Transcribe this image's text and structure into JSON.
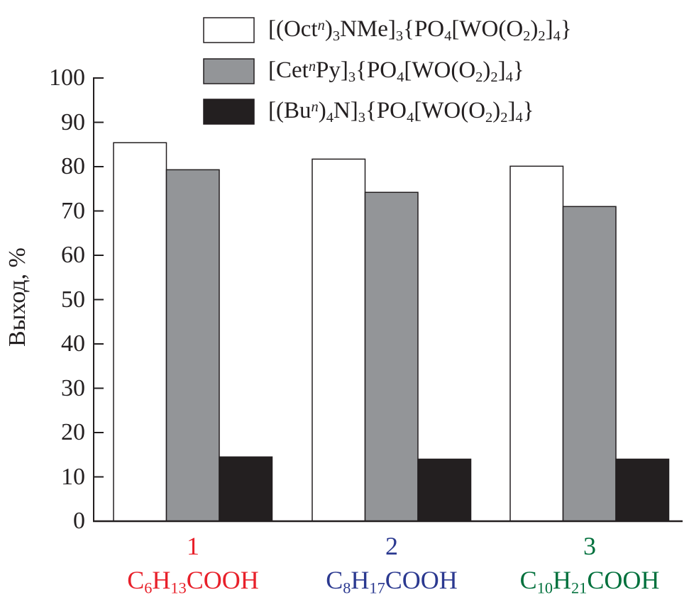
{
  "chart_data": {
    "type": "bar",
    "title": "",
    "xlabel": "",
    "ylabel": "Выход, %",
    "ylim": [
      0,
      100
    ],
    "yticks": [
      "0",
      "10",
      "20",
      "30",
      "40",
      "50",
      "60",
      "70",
      "80",
      "90",
      "100"
    ],
    "grid": false,
    "legend_position": "top-right",
    "categories": [
      {
        "number": "1",
        "formula": [
          {
            "t": "C"
          },
          {
            "t": "6",
            "s": "sub"
          },
          {
            "t": "H"
          },
          {
            "t": "13",
            "s": "sub"
          },
          {
            "t": "COOH"
          }
        ],
        "color": "#e8202a"
      },
      {
        "number": "2",
        "formula": [
          {
            "t": "C"
          },
          {
            "t": "8",
            "s": "sub"
          },
          {
            "t": "H"
          },
          {
            "t": "17",
            "s": "sub"
          },
          {
            "t": "COOH"
          }
        ],
        "color": "#2b3990"
      },
      {
        "number": "3",
        "formula": [
          {
            "t": "C"
          },
          {
            "t": "10",
            "s": "sub"
          },
          {
            "t": "H"
          },
          {
            "t": "21",
            "s": "sub"
          },
          {
            "t": "COOH"
          }
        ],
        "color": "#00703c"
      }
    ],
    "series": [
      {
        "name": [
          {
            "t": "[(Oct"
          },
          {
            "t": "n",
            "s": "sup"
          },
          {
            "t": ")"
          },
          {
            "t": "3",
            "s": "sub"
          },
          {
            "t": "NMe]"
          },
          {
            "t": "3",
            "s": "sub"
          },
          {
            "t": "{PO"
          },
          {
            "t": "4",
            "s": "sub"
          },
          {
            "t": "[WO(O"
          },
          {
            "t": "2",
            "s": "sub"
          },
          {
            "t": ")"
          },
          {
            "t": "2",
            "s": "sub"
          },
          {
            "t": "]"
          },
          {
            "t": "4",
            "s": "sub"
          },
          {
            "t": "}"
          }
        ],
        "color": "#ffffff",
        "values": [
          85.4,
          81.7,
          80.1
        ]
      },
      {
        "name": [
          {
            "t": "[Cet"
          },
          {
            "t": "n",
            "s": "sup"
          },
          {
            "t": "Py]"
          },
          {
            "t": "3",
            "s": "sub"
          },
          {
            "t": "{PO"
          },
          {
            "t": "4",
            "s": "sub"
          },
          {
            "t": "[WO(O"
          },
          {
            "t": "2",
            "s": "sub"
          },
          {
            "t": ")"
          },
          {
            "t": "2",
            "s": "sub"
          },
          {
            "t": "]"
          },
          {
            "t": "4",
            "s": "sub"
          },
          {
            "t": "}"
          }
        ],
        "color": "#939598",
        "values": [
          79.3,
          74.2,
          71.0
        ]
      },
      {
        "name": [
          {
            "t": "[(Bu"
          },
          {
            "t": "n",
            "s": "sup"
          },
          {
            "t": ")"
          },
          {
            "t": "4",
            "s": "sub"
          },
          {
            "t": "N]"
          },
          {
            "t": "3",
            "s": "sub"
          },
          {
            "t": "{PO"
          },
          {
            "t": "4",
            "s": "sub"
          },
          {
            "t": "[WO(O"
          },
          {
            "t": "2",
            "s": "sub"
          },
          {
            "t": ")"
          },
          {
            "t": "2",
            "s": "sub"
          },
          {
            "t": "]"
          },
          {
            "t": "4",
            "s": "sub"
          },
          {
            "t": "}"
          }
        ],
        "color": "#231f20",
        "values": [
          14.5,
          14.0,
          14.0
        ]
      }
    ]
  }
}
